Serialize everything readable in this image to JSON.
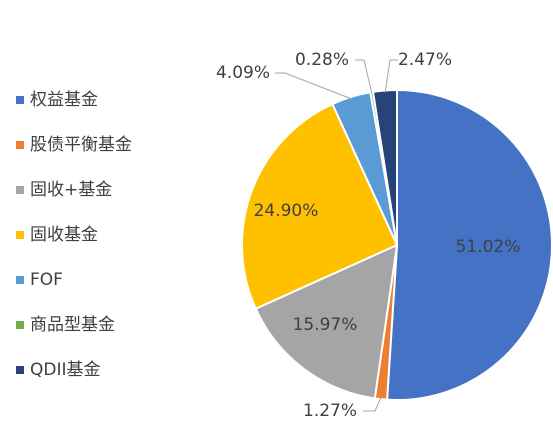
{
  "chart_data": {
    "type": "pie",
    "categories": [
      "权益基金",
      "股债平衡基金",
      "固收+基金",
      "固收基金",
      "FOF",
      "商品型基金",
      "QDII基金"
    ],
    "values": [
      51.02,
      1.27,
      15.97,
      24.9,
      4.09,
      0.28,
      2.47
    ],
    "value_labels": [
      "51.02%",
      "1.27%",
      "15.97%",
      "24.90%",
      "4.09%",
      "0.28%",
      "2.47%"
    ],
    "colors": [
      "#4472c4",
      "#ed7d31",
      "#a5a5a5",
      "#ffc000",
      "#5b9bd5",
      "#70ad47",
      "#264478"
    ],
    "legend": "left"
  }
}
